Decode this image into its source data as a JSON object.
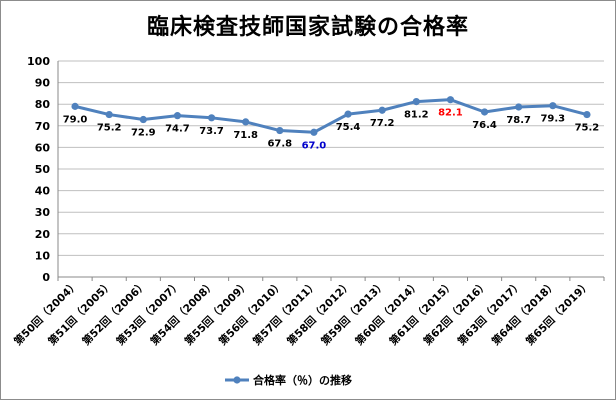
{
  "chart_data": {
    "type": "line",
    "title": "臨床検査技師国家試験の合格率",
    "xlabel": "",
    "ylabel": "",
    "ylim": [
      0,
      100
    ],
    "yticks": [
      "0",
      "10",
      "20",
      "30",
      "40",
      "50",
      "60",
      "70",
      "80",
      "90",
      "100"
    ],
    "grid": true,
    "legend_position": "bottom",
    "categories": [
      "第50回（2004）",
      "第51回（2005）",
      "第52回（2006）",
      "第53回（2007）",
      "第54回（2008）",
      "第55回（2009）",
      "第56回（2010）",
      "第57回（2011）",
      "第58回（2012）",
      "第59回（2013）",
      "第60回（2014）",
      "第61回（2015）",
      "第62回（2016）",
      "第63回（2017）",
      "第64回（2018）",
      "第65回（2019）"
    ],
    "series": [
      {
        "name": "合格率（％）の推移",
        "color": "#4f81bd",
        "values": [
          79.0,
          75.2,
          72.9,
          74.7,
          73.7,
          71.8,
          67.8,
          67.0,
          75.4,
          77.2,
          81.2,
          82.1,
          76.4,
          78.7,
          79.3,
          75.2
        ],
        "labels": [
          "79.0",
          "75.2",
          "72.9",
          "74.7",
          "73.7",
          "71.8",
          "67.8",
          "67.0",
          "75.4",
          "77.2",
          "81.2",
          "82.1",
          "76.4",
          "78.7",
          "79.3",
          "75.2"
        ]
      }
    ],
    "highlight_colors": {
      "max": "#ff0000",
      "min": "#0000cc",
      "default": "#000000"
    }
  }
}
